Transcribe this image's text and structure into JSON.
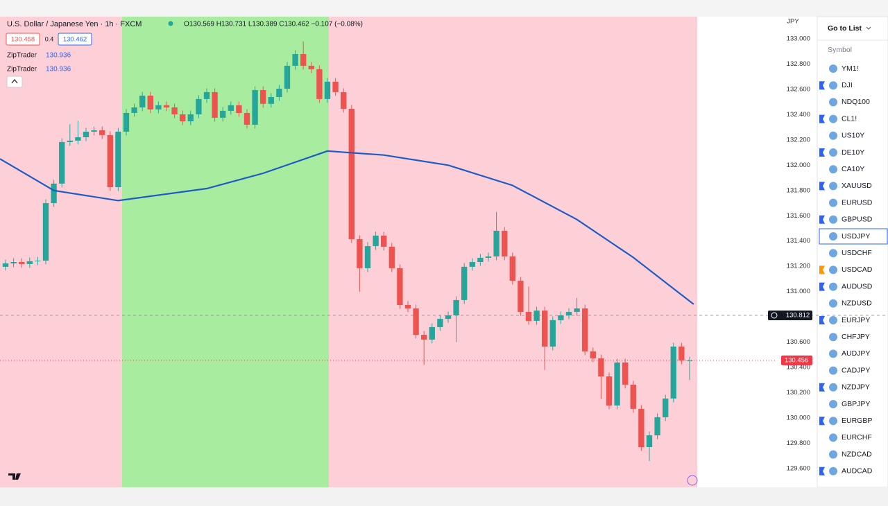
{
  "header": {
    "symbol_title": "U.S. Dollar / Japanese Yen · 1h · FXCM",
    "ohlc": "O130.569 H130.731 L130.389 C130.462 −0.107 (−0.08%)",
    "bid": "130.458",
    "spread": "0.4",
    "ask": "130.462",
    "indicators": [
      {
        "name": "ZipTrader",
        "value": "130.936"
      },
      {
        "name": "ZipTrader",
        "value": "130.936"
      }
    ]
  },
  "chart_data": {
    "type": "candlestick",
    "y_unit": "JPY",
    "up_color": "#26a69a",
    "down_color": "#ef5350",
    "xlim": [
      -0.69,
      85.95
    ],
    "ylim": [
      129.452,
      133.175
    ],
    "yticks": [
      {
        "value": 133,
        "label": "133.000"
      },
      {
        "value": 132.8,
        "label": "132.800"
      },
      {
        "value": 132.6,
        "label": "132.600"
      },
      {
        "value": 132.4,
        "label": "132.400"
      },
      {
        "value": 132.2,
        "label": "132.200"
      },
      {
        "value": 132,
        "label": "132.000"
      },
      {
        "value": 131.8,
        "label": "131.800"
      },
      {
        "value": 131.6,
        "label": "131.600"
      },
      {
        "value": 131.4,
        "label": "131.400"
      },
      {
        "value": 131.2,
        "label": "131.200"
      },
      {
        "value": 131,
        "label": "131.000"
      },
      {
        "value": 130.8,
        "label": "130.800"
      },
      {
        "value": 130.6,
        "label": "130.600"
      },
      {
        "value": 130.4,
        "label": "130.400"
      },
      {
        "value": 130.2,
        "label": "130.200"
      },
      {
        "value": 130,
        "label": "130.000"
      },
      {
        "value": 129.8,
        "label": "129.800"
      },
      {
        "value": 129.6,
        "label": "129.600"
      }
    ],
    "open": [
      131.196,
      131.223,
      131.234,
      131.218,
      131.24,
      131.245,
      131.7,
      131.854,
      132.183,
      132.194,
      132.221,
      132.265,
      132.276,
      132.238,
      131.826,
      132.265,
      132.413,
      132.457,
      132.55,
      132.441,
      132.474,
      132.457,
      132.402,
      132.347,
      132.402,
      132.523,
      132.578,
      132.375,
      132.43,
      132.474,
      132.413,
      132.32,
      132.594,
      132.485,
      132.539,
      132.605,
      132.786,
      132.879,
      132.786,
      132.759,
      132.523,
      132.66,
      132.578,
      132.446,
      131.415,
      131.185,
      131.36,
      131.443,
      131.355,
      131.185,
      130.894,
      130.867,
      130.658,
      130.62,
      130.719,
      130.784,
      130.812,
      130.933,
      131.196,
      131.234,
      131.267,
      131.278,
      131.481,
      131.278,
      131.086,
      130.839,
      130.768,
      130.85,
      130.565,
      130.774,
      130.812,
      130.839,
      130.867,
      130.527,
      130.472,
      130.329,
      130.099,
      130.439,
      130.264,
      130.072,
      129.77,
      129.863,
      130.006,
      130.154,
      130.565,
      130.455
    ],
    "high": [
      131.253,
      131.264,
      131.264,
      131.27,
      131.275,
      131.73,
      131.884,
      132.213,
      132.324,
      132.351,
      132.295,
      132.306,
      132.306,
      132.268,
      132.295,
      132.443,
      132.487,
      132.58,
      132.58,
      132.504,
      132.504,
      132.487,
      132.432,
      132.432,
      132.553,
      132.608,
      132.608,
      132.46,
      132.504,
      132.504,
      132.443,
      132.624,
      132.624,
      132.569,
      132.635,
      132.816,
      132.909,
      132.98,
      132.816,
      132.789,
      132.69,
      132.69,
      132.608,
      132.476,
      131.445,
      131.39,
      131.473,
      131.473,
      131.385,
      131.215,
      130.924,
      130.897,
      130.688,
      130.749,
      130.814,
      130.842,
      130.963,
      131.226,
      131.264,
      131.297,
      131.308,
      131.63,
      131.511,
      131.308,
      131.116,
      131.04,
      130.88,
      130.88,
      130.804,
      130.842,
      130.869,
      130.95,
      130.897,
      130.557,
      130.502,
      130.359,
      130.469,
      130.469,
      130.294,
      130.102,
      129.893,
      130.036,
      130.184,
      130.595,
      130.595,
      130.485
    ],
    "low": [
      131.166,
      131.193,
      131.188,
      131.188,
      131.21,
      131.215,
      131.67,
      131.824,
      132.153,
      132.164,
      132.191,
      132.235,
      132.208,
      131.796,
      131.796,
      132.235,
      132.383,
      132.427,
      132.411,
      132.411,
      132.427,
      132.372,
      132.317,
      132.317,
      132.372,
      132.493,
      132.345,
      132.345,
      132.4,
      132.383,
      132.29,
      132.29,
      132.455,
      132.455,
      132.509,
      132.575,
      132.756,
      132.756,
      132.729,
      132.493,
      132.493,
      132.548,
      132.416,
      131.385,
      131.0,
      131.155,
      131.33,
      131.325,
      131.155,
      130.864,
      130.837,
      130.628,
      130.42,
      130.59,
      130.689,
      130.754,
      130.6,
      130.903,
      131.166,
      131.204,
      131.237,
      131.248,
      131.248,
      131.056,
      130.809,
      130.738,
      130.738,
      130.38,
      130.535,
      130.744,
      130.782,
      130.809,
      130.497,
      130.442,
      130.15,
      130.069,
      130.069,
      130.234,
      130.042,
      129.74,
      129.66,
      129.833,
      129.976,
      130.124,
      130.425,
      130.3
    ],
    "close": [
      131.223,
      131.234,
      131.218,
      131.24,
      131.245,
      131.7,
      131.854,
      132.183,
      132.194,
      132.221,
      132.265,
      132.276,
      132.238,
      131.826,
      132.265,
      132.413,
      132.457,
      132.55,
      132.441,
      132.474,
      132.457,
      132.402,
      132.347,
      132.402,
      132.523,
      132.578,
      132.375,
      132.43,
      132.474,
      132.413,
      132.32,
      132.594,
      132.485,
      132.539,
      132.605,
      132.786,
      132.879,
      132.786,
      132.759,
      132.523,
      132.66,
      132.578,
      132.446,
      131.415,
      131.185,
      131.36,
      131.443,
      131.355,
      131.185,
      130.894,
      130.867,
      130.658,
      130.62,
      130.719,
      130.784,
      130.812,
      130.933,
      131.196,
      131.234,
      131.267,
      131.278,
      131.481,
      131.278,
      131.086,
      130.839,
      130.768,
      130.85,
      130.565,
      130.774,
      130.812,
      130.839,
      130.867,
      130.527,
      130.472,
      130.329,
      130.099,
      130.439,
      130.264,
      130.072,
      129.77,
      129.863,
      130.006,
      130.154,
      130.565,
      130.455,
      130.455
    ],
    "ma": {
      "color": "#1e5bc6",
      "x": [
        -0.69,
        6,
        14,
        25,
        32,
        40,
        47,
        55,
        63,
        71,
        78,
        85.5
      ],
      "values": [
        132.05,
        131.8,
        131.72,
        131.815,
        131.936,
        132.112,
        132.08,
        132.0,
        131.84,
        131.57,
        131.27,
        130.9
      ]
    },
    "last_price": 130.456,
    "last_price_color": "#f23645",
    "crosshair_price": 130.812
  },
  "watchlist": {
    "title": "Go to List",
    "column": "Symbol",
    "selected": 10,
    "items": [
      {
        "symbol": "YM1!"
      },
      {
        "symbol": "DJI",
        "flag": "#2962ff"
      },
      {
        "symbol": "NDQ100"
      },
      {
        "symbol": "CL1!",
        "flag": "#2962ff"
      },
      {
        "symbol": "US10Y"
      },
      {
        "symbol": "DE10Y",
        "flag": "#2962ff"
      },
      {
        "symbol": "CA10Y"
      },
      {
        "symbol": "XAUUSD",
        "flag": "#2962ff"
      },
      {
        "symbol": "EURUSD"
      },
      {
        "symbol": "GBPUSD",
        "flag": "#2962ff"
      },
      {
        "symbol": "USDJPY"
      },
      {
        "symbol": "USDCHF"
      },
      {
        "symbol": "USDCAD",
        "flag": "#ff9800"
      },
      {
        "symbol": "AUDUSD",
        "flag": "#2962ff"
      },
      {
        "symbol": "NZDUSD"
      },
      {
        "symbol": "EURJPY",
        "flag": "#2962ff"
      },
      {
        "symbol": "CHFJPY"
      },
      {
        "symbol": "AUDJPY"
      },
      {
        "symbol": "CADJPY"
      },
      {
        "symbol": "NZDJPY",
        "flag": "#2962ff"
      },
      {
        "symbol": "GBPJPY"
      },
      {
        "symbol": "EURGBP",
        "flag": "#2962ff"
      },
      {
        "symbol": "EURCHF"
      },
      {
        "symbol": "NZDCAD"
      },
      {
        "symbol": "AUDCAD",
        "flag": "#2962ff"
      }
    ]
  }
}
